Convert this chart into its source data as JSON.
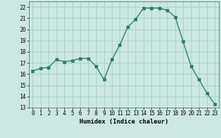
{
  "x": [
    0,
    1,
    2,
    3,
    4,
    5,
    6,
    7,
    8,
    9,
    10,
    11,
    12,
    13,
    14,
    15,
    16,
    17,
    18,
    19,
    20,
    21,
    22,
    23
  ],
  "y": [
    16.3,
    16.5,
    16.6,
    17.3,
    17.1,
    17.2,
    17.4,
    17.4,
    16.7,
    15.5,
    17.3,
    18.6,
    20.2,
    20.9,
    21.9,
    21.9,
    21.9,
    21.7,
    21.1,
    18.9,
    16.7,
    15.5,
    14.3,
    13.3
  ],
  "xlim": [
    -0.5,
    23.5
  ],
  "ylim": [
    13,
    22.5
  ],
  "yticks": [
    13,
    14,
    15,
    16,
    17,
    18,
    19,
    20,
    21,
    22
  ],
  "xticks": [
    0,
    1,
    2,
    3,
    4,
    5,
    6,
    7,
    8,
    9,
    10,
    11,
    12,
    13,
    14,
    15,
    16,
    17,
    18,
    19,
    20,
    21,
    22,
    23
  ],
  "xlabel": "Humidex (Indice chaleur)",
  "line_color": "#2e7b6e",
  "marker": "s",
  "marker_size": 2.5,
  "bg_color": "#cce8e0",
  "grid_color": "#99ccbb",
  "line_width": 1.0
}
